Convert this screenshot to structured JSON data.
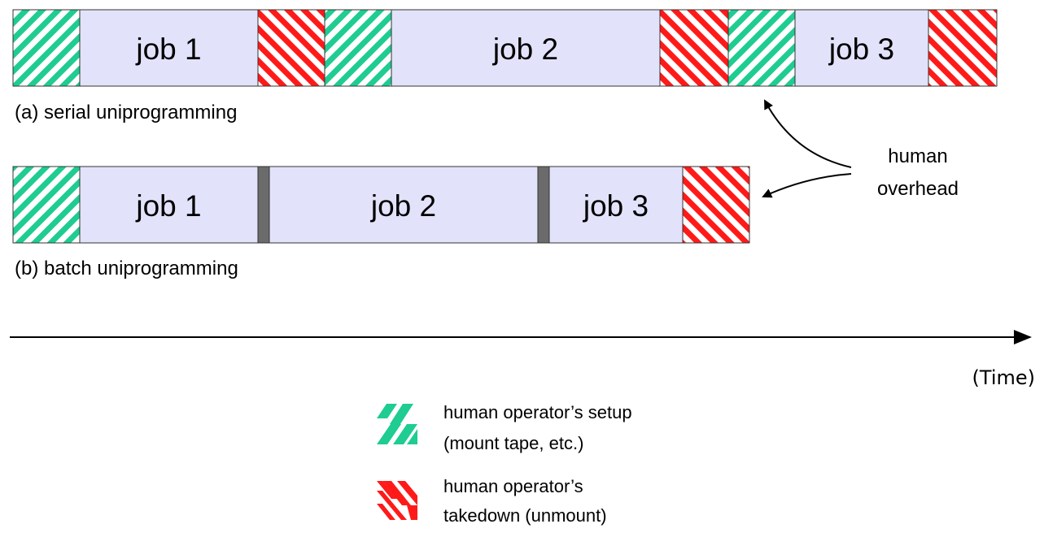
{
  "colors": {
    "setup_stripe": "#1fcc92",
    "takedown_stripe": "#ff1a1a",
    "job_fill": "#e2e3fa",
    "gap_fill": "#6b6b6b",
    "outline": "#333333",
    "arrow": "#000000"
  },
  "rows": {
    "serial": {
      "caption": "(a) serial uniprogramming",
      "jobs": [
        "job 1",
        "job 2",
        "job 3"
      ]
    },
    "batch": {
      "caption": "(b) batch uniprogramming",
      "jobs": [
        "job 1",
        "job 2",
        "job 3"
      ]
    }
  },
  "annotation": {
    "line1": "human",
    "line2": "overhead"
  },
  "axis": {
    "label": "(Time)"
  },
  "legend": {
    "setup": {
      "line1": "human operator’s setup",
      "line2": "(mount tape, etc.)"
    },
    "takedown": {
      "line1": "human operator’s",
      "line2": "takedown (unmount)"
    }
  }
}
